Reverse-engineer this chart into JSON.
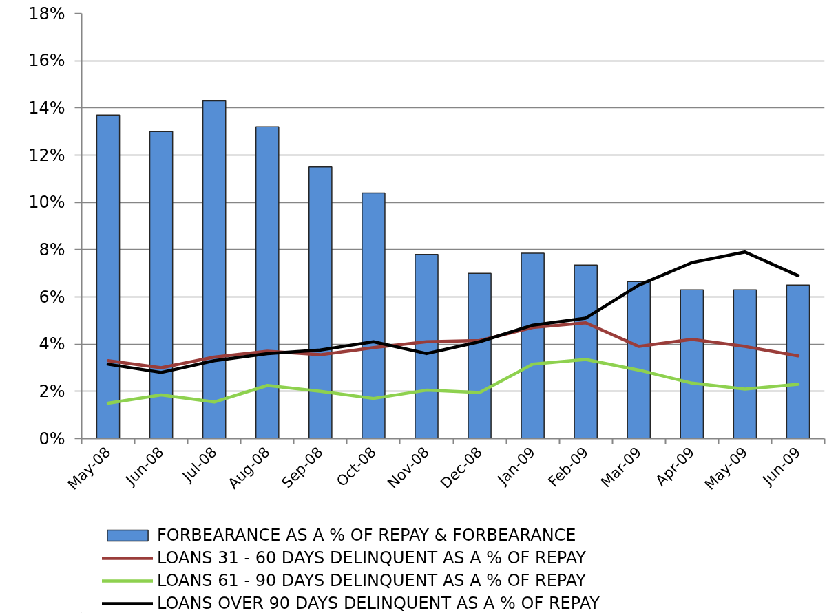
{
  "chart_data": {
    "type": "bar",
    "categories": [
      "May-08",
      "Jun-08",
      "Jul-08",
      "Aug-08",
      "Sep-08",
      "Oct-08",
      "Nov-08",
      "Dec-08",
      "Jan-09",
      "Feb-09",
      "Mar-09",
      "Apr-09",
      "May-09",
      "Jun-09"
    ],
    "series": [
      {
        "name": "FORBEARANCE AS A % OF REPAY & FORBEARANCE",
        "color": "#558ed5",
        "values": [
          13.7,
          13.0,
          14.3,
          13.2,
          11.5,
          10.4,
          7.8,
          7.0,
          7.85,
          7.35,
          6.65,
          6.3,
          6.3,
          6.5
        ]
      },
      {
        "name": "LOANS 31 - 60 DAYS DELINQUENT AS A % OF REPAY",
        "type": "line",
        "color": "#9a3d3a",
        "values": [
          3.3,
          3.0,
          3.45,
          3.7,
          3.55,
          3.85,
          4.1,
          4.15,
          4.7,
          4.9,
          3.9,
          4.2,
          3.9,
          3.5
        ]
      },
      {
        "name": "LOANS 61 - 90 DAYS DELINQUENT AS A % OF REPAY",
        "type": "line",
        "color": "#8ed14f",
        "values": [
          1.5,
          1.85,
          1.55,
          2.25,
          2.0,
          1.7,
          2.05,
          1.95,
          3.15,
          3.35,
          2.9,
          2.35,
          2.1,
          2.3
        ]
      },
      {
        "name": "LOANS OVER 90 DAYS DELINQUENT AS A % OF REPAY",
        "type": "line",
        "color": "#000000",
        "values": [
          3.15,
          2.8,
          3.3,
          3.6,
          3.75,
          4.1,
          3.6,
          4.1,
          4.8,
          5.1,
          6.5,
          7.45,
          7.9,
          6.9
        ]
      }
    ],
    "ylim": [
      0,
      18
    ],
    "yticks": [
      {
        "value": 0,
        "label": "0%"
      },
      {
        "value": 2,
        "label": "2%"
      },
      {
        "value": 4,
        "label": "4%"
      },
      {
        "value": 6,
        "label": "6%"
      },
      {
        "value": 8,
        "label": "8%"
      },
      {
        "value": 10,
        "label": "10%"
      },
      {
        "value": 12,
        "label": "12%"
      },
      {
        "value": 14,
        "label": "14%"
      },
      {
        "value": 16,
        "label": "16%"
      },
      {
        "value": 18,
        "label": "18%"
      }
    ],
    "grid": "y",
    "legend": "bottom"
  }
}
